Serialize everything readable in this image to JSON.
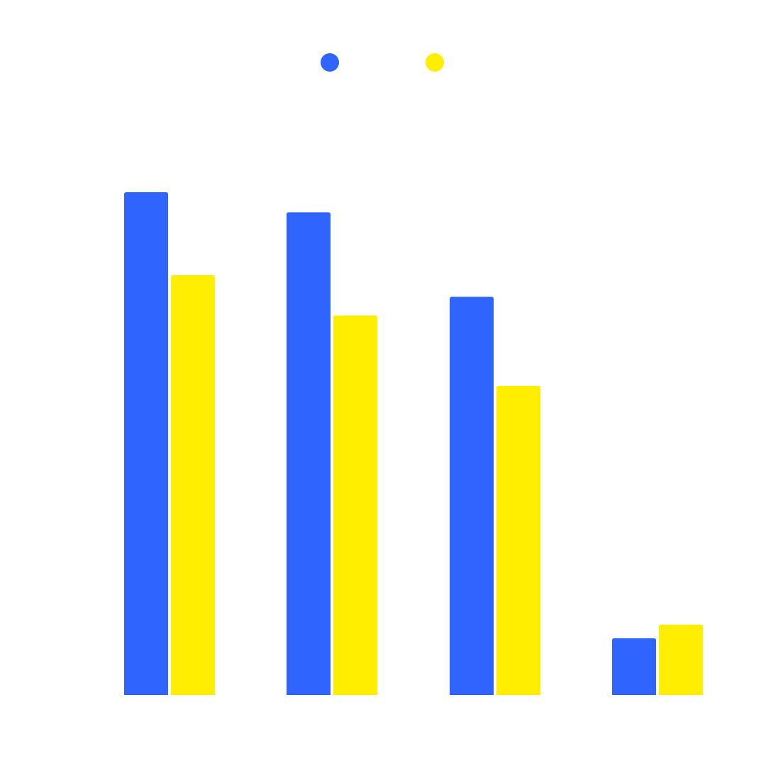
{
  "chart_data": {
    "type": "bar",
    "title": "",
    "xlabel": "",
    "ylabel": "",
    "categories": [
      "",
      "",
      "",
      ""
    ],
    "series": [
      {
        "color": "#2f64ff",
        "values": [
          100,
          96,
          79.2,
          11.3
        ]
      },
      {
        "color": "#ffee00",
        "values": [
          83.5,
          75.5,
          61.5,
          14
        ]
      }
    ],
    "ylim": [
      0,
      100
    ],
    "grid": false,
    "legend": "top-center"
  }
}
